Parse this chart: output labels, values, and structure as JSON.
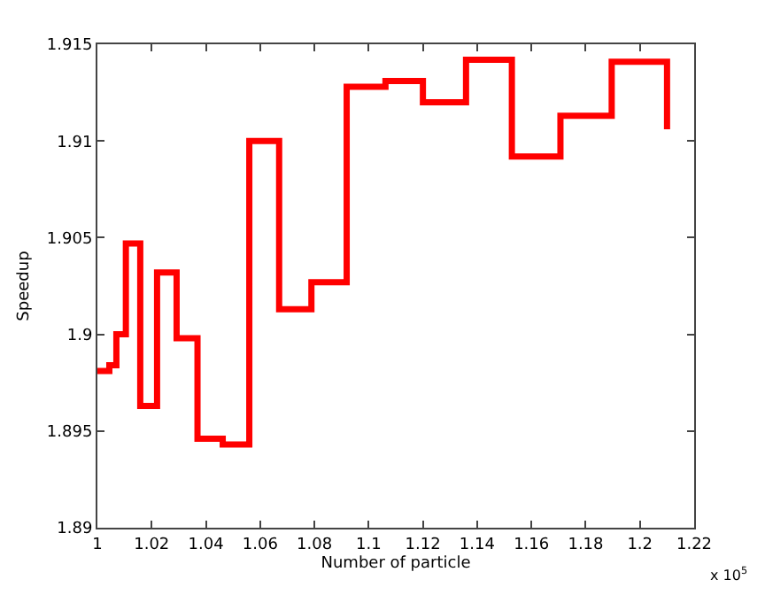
{
  "chart_data": {
    "type": "step",
    "xlabel": "Number of particle",
    "ylabel": "Speedup",
    "annotations": [
      "x 10$^{5}$"
    ],
    "x": [
      1.0,
      1.0044,
      1.007,
      1.0105,
      1.0158,
      1.022,
      1.0292,
      1.0369,
      1.0462,
      1.056,
      1.067,
      1.0789,
      1.0919,
      1.1062,
      1.12,
      1.1359,
      1.1528,
      1.1707,
      1.1896,
      1.21
    ],
    "series": [
      {
        "color": "#ff0000",
        "values": [
          1.8981,
          1.8984,
          1.9,
          1.9047,
          1.8963,
          1.9032,
          1.8998,
          1.8946,
          1.8943,
          1.91,
          1.9013,
          1.9027,
          1.9128,
          1.9131,
          1.912,
          1.9142,
          1.9092,
          1.9113,
          1.9141,
          1.9106
        ]
      }
    ],
    "xlim": [
      1,
      1.22
    ],
    "xticks": [
      1,
      1.02,
      1.04,
      1.06,
      1.08,
      1.1,
      1.12,
      1.14,
      1.16,
      1.18,
      1.2,
      1.22
    ],
    "ylim": [
      1.89,
      1.915
    ],
    "yticks": [
      1.89,
      1.895,
      1.9,
      1.905,
      1.91,
      1.915
    ],
    "grid": false,
    "line_style": "solid",
    "marker": "none"
  }
}
